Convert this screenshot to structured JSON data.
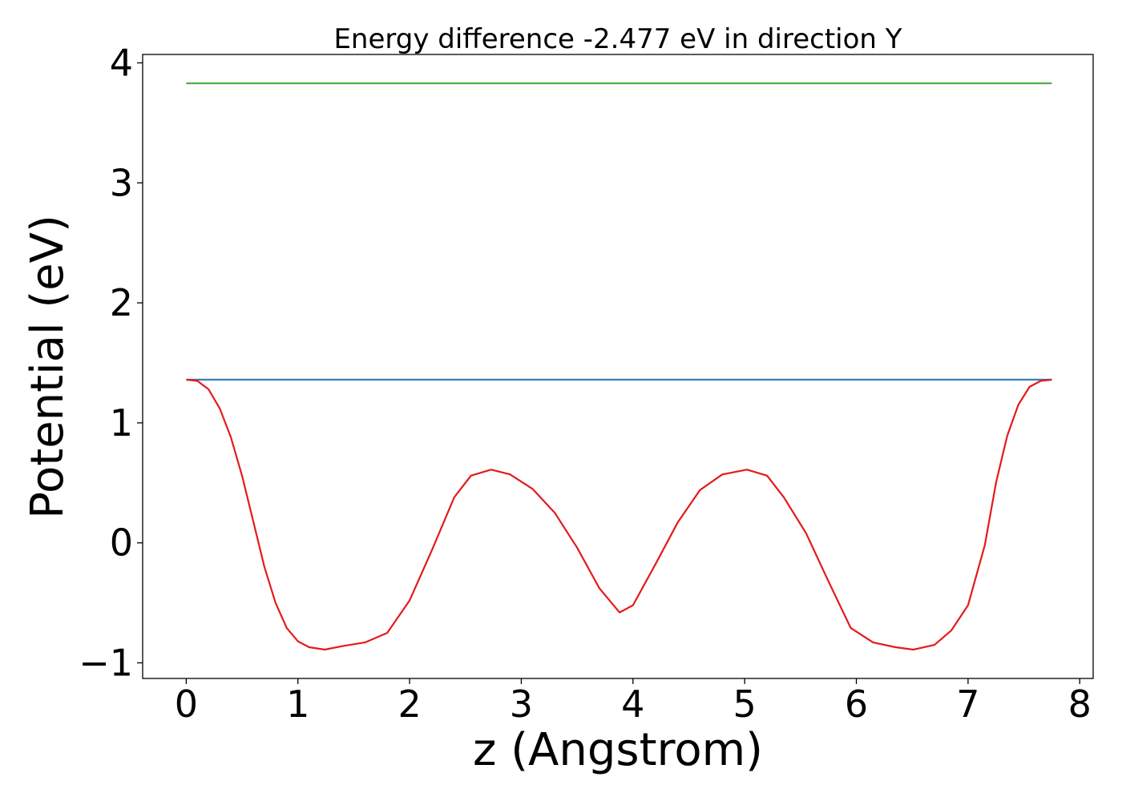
{
  "chart_data": {
    "type": "line",
    "title": "Energy difference -2.477 eV in direction Y",
    "xlabel": "z (Angstrom)",
    "ylabel": "Potential (eV)",
    "xlim": [
      -0.39,
      8.12
    ],
    "ylim": [
      -1.13,
      4.07
    ],
    "xticks": [
      0,
      1,
      2,
      3,
      4,
      5,
      6,
      7,
      8
    ],
    "xtick_labels": [
      "0",
      "1",
      "2",
      "3",
      "4",
      "5",
      "6",
      "7",
      "8"
    ],
    "yticks": [
      -1,
      0,
      1,
      2,
      3,
      4
    ],
    "ytick_labels": [
      "−1",
      "0",
      "1",
      "2",
      "3",
      "4"
    ],
    "grid": false,
    "series": [
      {
        "color": "#4daf4a",
        "x": [
          0,
          7.75
        ],
        "y": [
          3.83,
          3.83
        ]
      },
      {
        "color": "#377eb8",
        "x": [
          0,
          7.75
        ],
        "y": [
          1.36,
          1.36
        ]
      },
      {
        "color": "#e41a1c",
        "x": [
          0,
          0.1,
          0.2,
          0.3,
          0.4,
          0.5,
          0.6,
          0.7,
          0.8,
          0.9,
          1.0,
          1.1,
          1.24,
          1.4,
          1.6,
          1.8,
          2.0,
          2.2,
          2.4,
          2.55,
          2.73,
          2.9,
          3.1,
          3.3,
          3.5,
          3.7,
          3.88,
          4.0,
          4.2,
          4.4,
          4.6,
          4.8,
          5.02,
          5.2,
          5.35,
          5.55,
          5.75,
          5.95,
          6.15,
          6.35,
          6.51,
          6.7,
          6.85,
          7.0,
          7.15,
          7.25,
          7.35,
          7.45,
          7.55,
          7.65,
          7.75
        ],
        "y": [
          1.36,
          1.35,
          1.28,
          1.12,
          0.88,
          0.56,
          0.18,
          -0.2,
          -0.5,
          -0.71,
          -0.82,
          -0.87,
          -0.89,
          -0.86,
          -0.83,
          -0.75,
          -0.48,
          -0.06,
          0.38,
          0.56,
          0.61,
          0.57,
          0.45,
          0.25,
          -0.04,
          -0.38,
          -0.58,
          -0.52,
          -0.18,
          0.17,
          0.44,
          0.57,
          0.61,
          0.56,
          0.38,
          0.08,
          -0.32,
          -0.71,
          -0.83,
          -0.87,
          -0.89,
          -0.85,
          -0.73,
          -0.52,
          -0.02,
          0.5,
          0.89,
          1.15,
          1.3,
          1.35,
          1.36
        ]
      }
    ]
  }
}
